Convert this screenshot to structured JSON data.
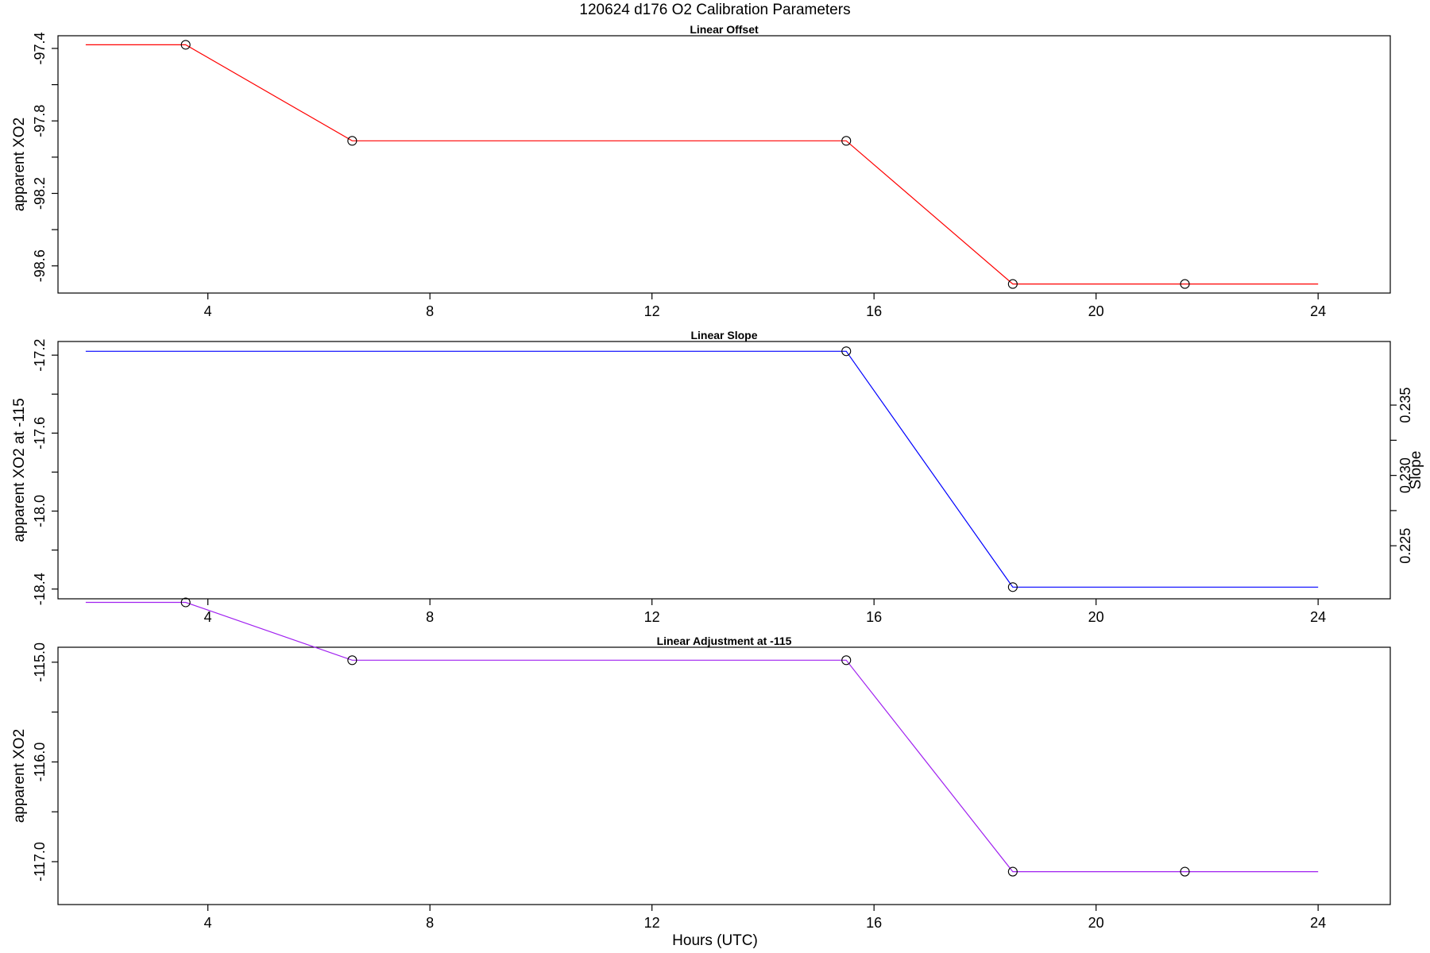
{
  "figure": {
    "title": "120624   d176   O2 Calibration Parameters",
    "xlabel": "Hours (UTC)"
  },
  "chart_data": [
    {
      "type": "line",
      "title": "Linear Offset",
      "xlabel": "",
      "ylabel": "apparent XO2",
      "xlim": [
        1.3,
        25.3
      ],
      "xticks": [
        4,
        8,
        12,
        16,
        20,
        24
      ],
      "ylim": [
        98.75,
        97.33
      ],
      "yticks": [
        97.4,
        97.8,
        98.2,
        98.6
      ],
      "yticklabels": [
        "-97.4",
        "-97.8",
        "-98.2",
        "-98.6"
      ],
      "yminor": [
        97.6,
        98.0,
        98.4
      ],
      "line_color": "#ff0000",
      "line": {
        "x": [
          1.8,
          3.6,
          6.6,
          15.5,
          18.5,
          21.6,
          24.0
        ],
        "y": [
          97.38,
          97.38,
          97.91,
          97.91,
          98.7,
          98.7,
          98.7
        ]
      },
      "markers": {
        "x": [
          3.6,
          6.6,
          15.5,
          18.5,
          21.6
        ],
        "y": [
          97.38,
          97.91,
          97.91,
          98.7,
          98.7
        ]
      }
    },
    {
      "type": "line",
      "title": "Linear Slope",
      "xlabel": "",
      "ylabel": "apparent XO2 at -115",
      "xlim": [
        1.3,
        25.3
      ],
      "xticks": [
        4,
        8,
        12,
        16,
        20,
        24
      ],
      "ylim": [
        18.45,
        17.13
      ],
      "yticks": [
        17.2,
        17.6,
        18.0,
        18.4
      ],
      "yticklabels": [
        "-17.2",
        "-17.6",
        "-18.0",
        "-18.4"
      ],
      "yminor": [
        17.4,
        17.8,
        18.2
      ],
      "y2label": "Slope",
      "y2ticks": [
        0.235,
        0.23,
        0.225
      ],
      "y2ticklabels": [
        "0.235",
        "0.230",
        "0.225"
      ],
      "y2minor": [
        0.2325,
        0.2275
      ],
      "y2lim": [
        0.22123,
        0.23952
      ],
      "line_color": "#0000ff",
      "line": {
        "x": [
          1.8,
          15.5,
          18.5,
          24.0
        ],
        "y": [
          17.18,
          17.18,
          18.39,
          18.39
        ]
      },
      "markers": {
        "x": [
          15.5,
          18.5
        ],
        "y": [
          17.18,
          18.39
        ]
      }
    },
    {
      "type": "line",
      "title": "Linear Adjustment at -115",
      "xlabel": "",
      "ylabel": "apparent XO2",
      "xlim": [
        1.3,
        25.3
      ],
      "xticks": [
        4,
        8,
        12,
        16,
        20,
        24
      ],
      "ylim": [
        117.43,
        114.85
      ],
      "yticks": [
        115.0,
        116.0,
        117.0
      ],
      "yticklabels": [
        "-115.0",
        "-116.0",
        "-117.0"
      ],
      "yminor": [
        114.5,
        115.5,
        116.5
      ],
      "line_color": "#a020f0",
      "line": {
        "x": [
          1.8,
          3.6,
          6.6,
          15.5,
          18.5,
          21.6,
          24.0
        ],
        "y": [
          114.4,
          114.4,
          114.98,
          114.98,
          117.1,
          117.1,
          117.1
        ]
      },
      "markers": {
        "x": [
          3.6,
          6.6,
          15.5,
          18.5,
          21.6
        ],
        "y": [
          114.4,
          114.98,
          114.98,
          117.1,
          117.1
        ]
      }
    }
  ]
}
